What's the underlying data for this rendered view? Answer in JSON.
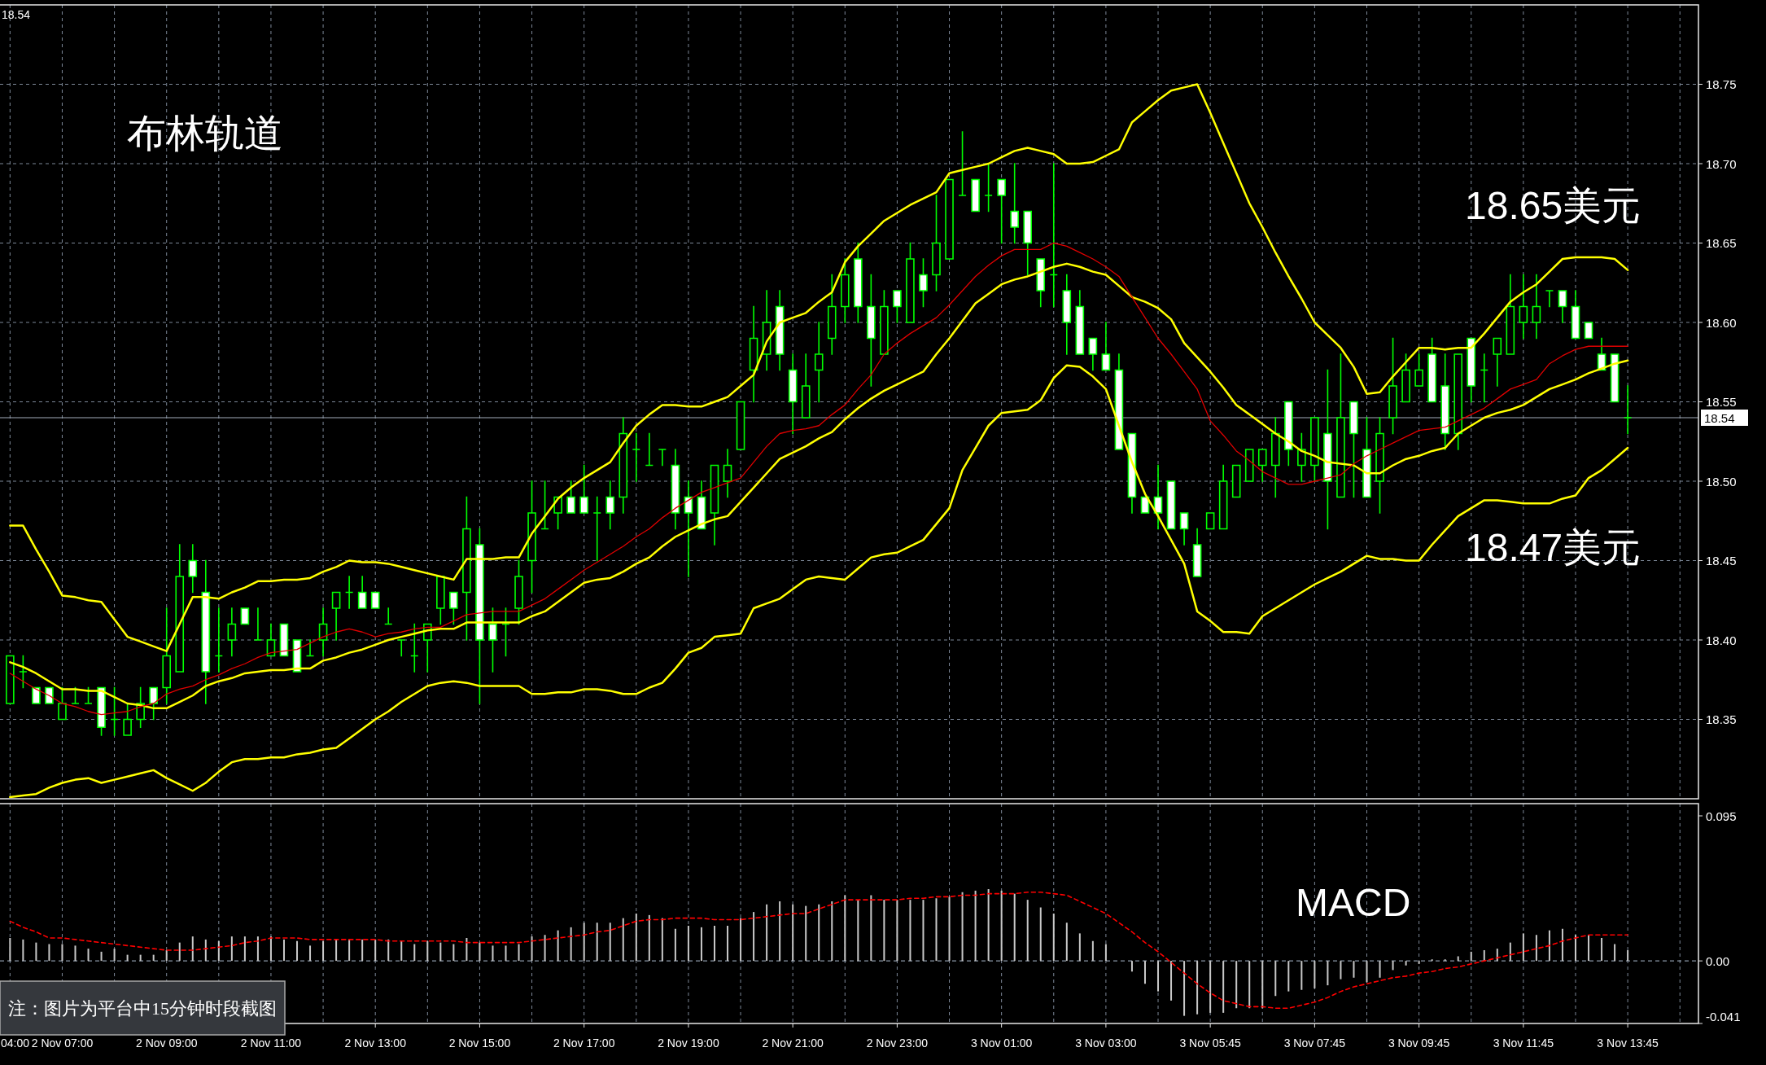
{
  "chart_data": [
    {
      "type": "candlestick",
      "color": "#00ff00",
      "categories": [
        null,
        null,
        null,
        null,
        null,
        null,
        null,
        null,
        null,
        null,
        null,
        null,
        null,
        null,
        null,
        null,
        null,
        null,
        null,
        null,
        null,
        null,
        null,
        null,
        null,
        null,
        null,
        null,
        null,
        null,
        null,
        null,
        null,
        null,
        null,
        null,
        null,
        null,
        null,
        null,
        null,
        null,
        null,
        null,
        null,
        null,
        null,
        null,
        null,
        null,
        null,
        null,
        null,
        null,
        null,
        null,
        null,
        null,
        null,
        null,
        null,
        null,
        null,
        null,
        null,
        null,
        null,
        null,
        null,
        null,
        null,
        null,
        null,
        null,
        null,
        null,
        null,
        null,
        null,
        null,
        null,
        null,
        null,
        null,
        null,
        null,
        null,
        null,
        null,
        null,
        null,
        null,
        null,
        null,
        null,
        null,
        null,
        null,
        null,
        null,
        null,
        null,
        null,
        null,
        null,
        null,
        null,
        null,
        null,
        null,
        null,
        null,
        null,
        null,
        null,
        null,
        null,
        null,
        null,
        null,
        null,
        null,
        null,
        null,
        null
      ],
      "ohlc": [
        [
          18.36,
          18.39,
          18.36,
          18.39
        ],
        [
          18.38,
          18.39,
          18.37,
          18.38
        ],
        [
          18.37,
          18.37,
          18.36,
          18.36
        ],
        [
          18.37,
          18.37,
          18.36,
          18.36
        ],
        [
          18.35,
          18.37,
          18.35,
          18.36
        ],
        [
          18.36,
          18.37,
          18.36,
          18.36
        ],
        [
          18.36,
          18.37,
          18.36,
          18.36
        ],
        [
          18.37,
          18.37,
          18.34,
          18.345
        ],
        [
          18.35,
          18.37,
          18.34,
          18.35
        ],
        [
          18.34,
          18.36,
          18.34,
          18.35
        ],
        [
          18.35,
          18.37,
          18.345,
          18.36
        ],
        [
          18.37,
          18.37,
          18.35,
          18.36
        ],
        [
          18.37,
          18.42,
          18.36,
          18.39
        ],
        [
          18.38,
          18.46,
          18.38,
          18.44
        ],
        [
          18.45,
          18.46,
          18.43,
          18.44
        ],
        [
          18.43,
          18.45,
          18.36,
          18.38
        ],
        [
          18.39,
          18.42,
          18.38,
          18.39
        ],
        [
          18.4,
          18.42,
          18.39,
          18.41
        ],
        [
          18.42,
          18.42,
          18.41,
          18.41
        ],
        [
          18.4,
          18.42,
          18.4,
          18.4
        ],
        [
          18.39,
          18.41,
          18.39,
          18.4
        ],
        [
          18.41,
          18.41,
          18.39,
          18.39
        ],
        [
          18.4,
          18.4,
          18.38,
          18.38
        ],
        [
          18.39,
          18.4,
          18.39,
          18.39
        ],
        [
          18.4,
          18.42,
          18.39,
          18.41
        ],
        [
          18.42,
          18.43,
          18.4,
          18.43
        ],
        [
          18.43,
          18.44,
          18.42,
          18.43
        ],
        [
          18.43,
          18.44,
          18.42,
          18.42
        ],
        [
          18.43,
          18.43,
          18.42,
          18.42
        ],
        [
          18.41,
          18.42,
          18.41,
          18.41
        ],
        [
          18.4,
          18.4,
          18.39,
          18.4
        ],
        [
          18.39,
          18.41,
          18.38,
          18.39
        ],
        [
          18.4,
          18.41,
          18.38,
          18.41
        ],
        [
          18.42,
          18.44,
          18.41,
          18.44
        ],
        [
          18.43,
          18.43,
          18.41,
          18.42
        ],
        [
          18.43,
          18.49,
          18.4,
          18.47
        ],
        [
          18.46,
          18.47,
          18.36,
          18.4
        ],
        [
          18.41,
          18.42,
          18.38,
          18.4
        ],
        [
          18.41,
          18.42,
          18.39,
          18.41
        ],
        [
          18.42,
          18.45,
          18.41,
          18.44
        ],
        [
          18.45,
          18.5,
          18.43,
          18.48
        ],
        [
          18.47,
          18.5,
          18.47,
          18.47
        ],
        [
          18.48,
          18.49,
          18.47,
          18.49
        ],
        [
          18.49,
          18.5,
          18.48,
          18.48
        ],
        [
          18.49,
          18.51,
          18.48,
          18.48
        ],
        [
          18.48,
          18.49,
          18.45,
          18.48
        ],
        [
          18.49,
          18.5,
          18.47,
          18.48
        ],
        [
          18.49,
          18.54,
          18.48,
          18.53
        ],
        [
          18.52,
          18.53,
          18.5,
          18.52
        ],
        [
          18.51,
          18.53,
          18.51,
          18.51
        ],
        [
          18.52,
          18.52,
          18.51,
          18.52
        ],
        [
          18.51,
          18.52,
          18.47,
          18.48
        ],
        [
          18.49,
          18.5,
          18.44,
          18.48
        ],
        [
          18.49,
          18.5,
          18.47,
          18.47
        ],
        [
          18.48,
          18.51,
          18.46,
          18.51
        ],
        [
          18.5,
          18.52,
          18.49,
          18.51
        ],
        [
          18.52,
          18.55,
          18.52,
          18.55
        ],
        [
          18.57,
          18.61,
          18.55,
          18.59
        ],
        [
          18.58,
          18.62,
          18.57,
          18.6
        ],
        [
          18.61,
          18.62,
          18.57,
          18.58
        ],
        [
          18.57,
          18.58,
          18.53,
          18.55
        ],
        [
          18.54,
          18.58,
          18.54,
          18.56
        ],
        [
          18.57,
          18.6,
          18.55,
          18.58
        ],
        [
          18.59,
          18.63,
          18.58,
          18.61
        ],
        [
          18.61,
          18.64,
          18.6,
          18.63
        ],
        [
          18.64,
          18.65,
          18.6,
          18.61
        ],
        [
          18.61,
          18.63,
          18.56,
          18.59
        ],
        [
          18.58,
          18.62,
          18.58,
          18.61
        ],
        [
          18.62,
          18.62,
          18.6,
          18.61
        ],
        [
          18.6,
          18.65,
          18.6,
          18.64
        ],
        [
          18.63,
          18.64,
          18.61,
          18.62
        ],
        [
          18.63,
          18.68,
          18.62,
          18.65
        ],
        [
          18.64,
          18.69,
          18.64,
          18.69
        ],
        [
          18.68,
          18.72,
          18.68,
          18.68
        ],
        [
          18.69,
          18.69,
          18.67,
          18.67
        ],
        [
          18.68,
          18.7,
          18.67,
          18.68
        ],
        [
          18.69,
          18.69,
          18.65,
          18.68
        ],
        [
          18.67,
          18.7,
          18.65,
          18.66
        ],
        [
          18.67,
          18.67,
          18.63,
          18.65
        ],
        [
          18.64,
          18.64,
          18.61,
          18.62
        ],
        [
          18.63,
          18.7,
          18.61,
          18.63
        ],
        [
          18.62,
          18.63,
          18.58,
          18.6
        ],
        [
          18.61,
          18.62,
          18.58,
          18.58
        ],
        [
          18.59,
          18.59,
          18.57,
          18.58
        ],
        [
          18.58,
          18.6,
          18.57,
          18.57
        ],
        [
          18.57,
          18.58,
          18.52,
          18.52
        ],
        [
          18.53,
          18.53,
          18.48,
          18.49
        ],
        [
          18.49,
          18.49,
          18.48,
          18.48
        ],
        [
          18.49,
          18.51,
          18.47,
          18.48
        ],
        [
          18.5,
          18.5,
          18.47,
          18.47
        ],
        [
          18.48,
          18.48,
          18.46,
          18.47
        ],
        [
          18.46,
          18.47,
          18.44,
          18.44
        ],
        [
          18.47,
          18.48,
          18.47,
          18.48
        ],
        [
          18.47,
          18.51,
          18.47,
          18.5
        ],
        [
          18.49,
          18.51,
          18.49,
          18.51
        ],
        [
          18.5,
          18.52,
          18.5,
          18.52
        ],
        [
          18.51,
          18.52,
          18.5,
          18.52
        ],
        [
          18.51,
          18.54,
          18.49,
          18.53
        ],
        [
          18.55,
          18.55,
          18.51,
          18.52
        ],
        [
          18.51,
          18.53,
          18.5,
          18.52
        ],
        [
          18.51,
          18.54,
          18.5,
          18.54
        ],
        [
          18.53,
          18.57,
          18.47,
          18.5
        ],
        [
          18.49,
          18.58,
          18.49,
          18.54
        ],
        [
          18.55,
          18.55,
          18.49,
          18.53
        ],
        [
          18.52,
          18.54,
          18.49,
          18.49
        ],
        [
          18.5,
          18.54,
          18.48,
          18.53
        ],
        [
          18.54,
          18.59,
          18.53,
          18.56
        ],
        [
          18.55,
          18.58,
          18.55,
          18.57
        ],
        [
          18.56,
          18.58,
          18.56,
          18.57
        ],
        [
          18.58,
          18.59,
          18.55,
          18.55
        ],
        [
          18.56,
          18.58,
          18.52,
          18.53
        ],
        [
          18.53,
          18.58,
          18.52,
          18.58
        ],
        [
          18.59,
          18.59,
          18.55,
          18.56
        ],
        [
          18.57,
          18.58,
          18.55,
          18.57
        ],
        [
          18.58,
          18.59,
          18.56,
          18.59
        ],
        [
          18.58,
          18.63,
          18.58,
          18.61
        ],
        [
          18.6,
          18.63,
          18.59,
          18.61
        ],
        [
          18.6,
          18.63,
          18.59,
          18.61
        ],
        [
          18.62,
          18.62,
          18.61,
          18.62
        ],
        [
          18.62,
          18.62,
          18.6,
          18.61
        ],
        [
          18.61,
          18.62,
          18.59,
          18.59
        ],
        [
          18.6,
          18.6,
          18.59,
          18.59
        ],
        [
          18.58,
          18.59,
          18.57,
          18.57
        ],
        [
          18.58,
          18.58,
          18.55,
          18.55
        ],
        [
          18.54,
          18.56,
          18.53,
          18.54
        ]
      ],
      "series": [
        {
          "type": "line",
          "color": "#ffff00",
          "values": [
            18.472,
            18.472,
            18.457,
            18.443,
            18.428,
            18.427,
            18.425,
            18.424,
            18.413,
            18.402,
            18.399,
            18.396,
            18.393,
            18.41,
            18.427,
            18.427,
            18.426,
            18.43,
            18.433,
            18.437,
            18.437,
            18.438,
            18.438,
            18.439,
            18.443,
            18.446,
            18.45,
            18.449,
            18.449,
            18.448,
            18.446,
            18.444,
            18.442,
            18.44,
            18.438,
            18.451,
            18.451,
            18.451,
            18.452,
            18.452,
            18.467,
            18.478,
            18.489,
            18.496,
            18.502,
            18.507,
            18.512,
            18.524,
            18.535,
            18.542,
            18.548,
            18.548,
            18.547,
            18.547,
            18.55,
            18.553,
            18.56,
            18.567,
            18.588,
            18.6,
            18.603,
            18.606,
            18.613,
            18.619,
            18.638,
            18.648,
            18.656,
            18.664,
            18.669,
            18.674,
            18.678,
            18.682,
            18.694,
            18.696,
            18.698,
            18.7,
            18.704,
            18.708,
            18.71,
            18.708,
            18.706,
            18.7,
            18.7,
            18.701,
            18.705,
            18.709,
            18.726,
            18.733,
            18.74,
            18.746,
            18.748,
            18.75,
            18.732,
            18.713,
            18.694,
            18.675,
            18.66,
            18.644,
            18.629,
            18.615,
            18.6,
            18.592,
            18.584,
            18.572,
            18.555,
            18.556,
            18.566,
            18.575,
            18.584,
            18.584,
            18.583,
            18.584,
            18.584,
            18.593,
            18.603,
            18.613,
            18.619,
            18.624,
            18.632,
            18.64,
            18.641,
            18.641,
            18.641,
            18.64,
            18.633
          ]
        },
        {
          "type": "line",
          "color": "#ffff00",
          "values": [
            18.386,
            18.383,
            18.379,
            18.374,
            18.369,
            18.369,
            18.368,
            18.368,
            18.364,
            18.36,
            18.359,
            18.357,
            18.357,
            18.361,
            18.365,
            18.371,
            18.374,
            18.376,
            18.379,
            18.38,
            18.381,
            18.381,
            18.382,
            18.382,
            18.387,
            18.389,
            18.392,
            18.394,
            18.397,
            18.4,
            18.402,
            18.404,
            18.406,
            18.407,
            18.407,
            18.411,
            18.411,
            18.411,
            18.411,
            18.411,
            18.415,
            18.418,
            18.424,
            18.43,
            18.436,
            18.438,
            18.439,
            18.443,
            18.448,
            18.452,
            18.459,
            18.465,
            18.469,
            18.473,
            18.476,
            18.478,
            18.487,
            18.496,
            18.505,
            18.514,
            18.518,
            18.522,
            18.527,
            18.531,
            18.539,
            18.546,
            18.552,
            18.557,
            18.561,
            18.565,
            18.569,
            18.58,
            18.59,
            18.601,
            18.612,
            18.618,
            18.624,
            18.627,
            18.629,
            18.632,
            18.635,
            18.637,
            18.635,
            18.632,
            18.63,
            18.623,
            18.616,
            18.613,
            18.609,
            18.602,
            18.587,
            18.578,
            18.569,
            18.559,
            18.548,
            18.542,
            18.536,
            18.53,
            18.525,
            18.519,
            18.516,
            18.512,
            18.511,
            18.51,
            18.505,
            18.505,
            18.51,
            18.514,
            18.516,
            18.519,
            18.521,
            18.53,
            18.535,
            18.54,
            18.543,
            18.545,
            18.548,
            18.553,
            18.558,
            18.561,
            18.564,
            18.568,
            18.571,
            18.574,
            18.576
          ]
        },
        {
          "type": "line",
          "color": "#ffff00",
          "values": [
            18.301,
            18.302,
            18.303,
            18.307,
            18.31,
            18.312,
            18.313,
            18.31,
            18.312,
            18.314,
            18.316,
            18.318,
            18.313,
            18.309,
            18.305,
            18.31,
            18.317,
            18.323,
            18.325,
            18.325,
            18.326,
            18.326,
            18.328,
            18.329,
            18.331,
            18.332,
            18.338,
            18.344,
            18.35,
            18.355,
            18.361,
            18.366,
            18.371,
            18.373,
            18.374,
            18.373,
            18.371,
            18.371,
            18.371,
            18.371,
            18.366,
            18.366,
            18.367,
            18.367,
            18.369,
            18.369,
            18.368,
            18.366,
            18.366,
            18.37,
            18.373,
            18.382,
            18.392,
            18.395,
            18.402,
            18.403,
            18.404,
            18.42,
            18.423,
            18.426,
            18.432,
            18.438,
            18.44,
            18.439,
            18.438,
            18.445,
            18.452,
            18.454,
            18.455,
            18.459,
            18.463,
            18.473,
            18.483,
            18.507,
            18.521,
            18.535,
            18.543,
            18.544,
            18.545,
            18.551,
            18.565,
            18.573,
            18.572,
            18.566,
            18.558,
            18.535,
            18.512,
            18.492,
            18.478,
            18.463,
            18.448,
            18.418,
            18.412,
            18.405,
            18.405,
            18.404,
            18.415,
            18.42,
            18.425,
            18.43,
            18.435,
            18.439,
            18.443,
            18.448,
            18.453,
            18.451,
            18.451,
            18.45,
            18.45,
            18.46,
            18.469,
            18.478,
            18.483,
            18.488,
            18.488,
            18.487,
            18.486,
            18.486,
            18.486,
            18.489,
            18.491,
            18.502,
            18.507,
            18.514,
            18.521
          ]
        },
        {
          "type": "line",
          "color": "#e00000",
          "values": [
            18.379,
            18.374,
            18.369,
            18.365,
            18.36,
            18.358,
            18.355,
            18.353,
            18.354,
            18.355,
            18.358,
            18.36,
            18.366,
            18.369,
            18.371,
            18.375,
            18.378,
            18.382,
            18.385,
            18.389,
            18.392,
            18.393,
            18.394,
            18.398,
            18.402,
            18.405,
            18.407,
            18.405,
            18.402,
            18.404,
            18.405,
            18.407,
            18.408,
            18.408,
            18.412,
            18.416,
            18.417,
            18.418,
            18.418,
            18.418,
            18.422,
            18.426,
            18.432,
            18.438,
            18.444,
            18.449,
            18.454,
            18.459,
            18.465,
            18.47,
            18.477,
            18.483,
            18.488,
            18.493,
            18.496,
            18.499,
            18.502,
            18.512,
            18.522,
            18.53,
            18.532,
            18.533,
            18.535,
            18.542,
            18.548,
            18.558,
            18.567,
            18.58,
            18.587,
            18.593,
            18.598,
            18.603,
            18.611,
            18.62,
            18.629,
            18.636,
            18.642,
            18.646,
            18.646,
            18.646,
            18.65,
            18.648,
            18.644,
            18.64,
            18.635,
            18.629,
            18.616,
            18.603,
            18.59,
            18.58,
            18.569,
            18.558,
            18.538,
            18.529,
            18.519,
            18.513,
            18.506,
            18.502,
            18.498,
            18.498,
            18.5,
            18.502,
            18.504,
            18.511,
            18.516,
            18.52,
            18.524,
            18.528,
            18.532,
            18.533,
            18.534,
            18.538,
            18.542,
            18.546,
            18.552,
            18.558,
            18.561,
            18.564,
            18.574,
            18.579,
            18.583,
            18.585,
            18.585,
            18.585,
            18.585
          ]
        }
      ],
      "ylim": [
        18.3,
        18.8
      ],
      "yticks": [
        18.35,
        {
          "value": 18.4,
          "label": "18.40"
        },
        18.45,
        {
          "value": 18.5,
          "label": "18.50"
        },
        18.55,
        {
          "value": 18.6,
          "label": "18.60"
        },
        18.65,
        {
          "value": 18.7,
          "label": "18.70"
        },
        18.75
      ],
      "grid": true,
      "ref_lines": [
        {
          "axis": "y",
          "value": 18.54,
          "label": "18.54",
          "color": "#a4aebb"
        }
      ],
      "annotations": [
        "18.54",
        "布林轨道",
        "18.65美元",
        "18.47美元"
      ]
    },
    {
      "type": "bar",
      "color": "#c8c8c8",
      "categories": [
        "04:00",
        null,
        null,
        null,
        "2 Nov 07:00",
        null,
        null,
        null,
        null,
        null,
        null,
        null,
        "2 Nov 09:00",
        null,
        null,
        null,
        null,
        null,
        null,
        null,
        "2 Nov 11:00",
        null,
        null,
        null,
        null,
        null,
        null,
        null,
        "2 Nov 13:00",
        null,
        null,
        null,
        null,
        null,
        null,
        null,
        "2 Nov 15:00",
        null,
        null,
        null,
        null,
        null,
        null,
        null,
        "2 Nov 17:00",
        null,
        null,
        null,
        null,
        null,
        null,
        null,
        "2 Nov 19:00",
        null,
        null,
        null,
        null,
        null,
        null,
        null,
        "2 Nov 21:00",
        null,
        null,
        null,
        null,
        null,
        null,
        null,
        "2 Nov 23:00",
        null,
        null,
        null,
        null,
        null,
        null,
        null,
        "3 Nov 01:00",
        null,
        null,
        null,
        null,
        null,
        null,
        null,
        "3 Nov 03:00",
        null,
        null,
        null,
        null,
        null,
        null,
        null,
        "3 Nov 05:45",
        null,
        null,
        null,
        null,
        null,
        null,
        null,
        "3 Nov 07:45",
        null,
        null,
        null,
        null,
        null,
        null,
        null,
        "3 Nov 09:45",
        null,
        null,
        null,
        null,
        null,
        null,
        null,
        "3 Nov 11:45",
        null,
        null,
        null,
        null,
        null,
        null,
        null,
        "3 Nov 13:45"
      ],
      "values": [
        0.015,
        0.014,
        0.012,
        0.011,
        0.011,
        0.01,
        0.008,
        0.006,
        0.008,
        0.004,
        0.004,
        0.004,
        0.007,
        0.012,
        0.016,
        0.014,
        0.013,
        0.016,
        0.016,
        0.016,
        0.016,
        0.014,
        0.013,
        0.01,
        0.013,
        0.014,
        0.014,
        0.014,
        0.014,
        0.014,
        0.013,
        0.011,
        0.013,
        0.012,
        0.011,
        0.015,
        0.012,
        0.01,
        0.01,
        0.011,
        0.016,
        0.017,
        0.02,
        0.022,
        0.025,
        0.025,
        0.025,
        0.028,
        0.031,
        0.03,
        0.028,
        0.021,
        0.023,
        0.022,
        0.023,
        0.023,
        0.028,
        0.032,
        0.037,
        0.039,
        0.037,
        0.036,
        0.037,
        0.039,
        0.043,
        0.04,
        0.043,
        0.04,
        0.04,
        0.04,
        0.04,
        0.041,
        0.042,
        0.045,
        0.046,
        0.047,
        0.046,
        0.044,
        0.04,
        0.035,
        0.031,
        0.025,
        0.018,
        0.013,
        0.011,
        null,
        -0.007,
        -0.015,
        -0.02,
        -0.026,
        -0.036,
        -0.035,
        -0.034,
        -0.034,
        -0.031,
        -0.031,
        -0.031,
        -0.023,
        -0.02,
        -0.019,
        -0.018,
        -0.016,
        -0.012,
        -0.011,
        -0.014,
        -0.011,
        -0.006,
        -0.003,
        -0.002,
        0.001,
        0.001,
        0.003,
        0.006,
        0.007,
        0.008,
        0.012,
        0.018,
        0.017,
        0.02,
        0.021,
        0.017,
        0.017,
        0.015,
        0.011,
        0.007
      ],
      "series": [
        {
          "type": "line",
          "color": "#ff0000",
          "line_style": "dashed",
          "values": [
            0.026,
            0.022,
            0.019,
            0.015,
            0.015,
            0.014,
            0.013,
            0.012,
            0.011,
            0.01,
            0.009,
            0.008,
            0.007,
            0.007,
            0.007,
            0.008,
            0.009,
            0.01,
            0.012,
            0.013,
            0.015,
            0.015,
            0.015,
            0.014,
            0.014,
            0.014,
            0.014,
            0.014,
            0.014,
            0.013,
            0.013,
            0.013,
            0.013,
            0.013,
            0.013,
            0.012,
            0.012,
            0.012,
            0.012,
            0.012,
            0.013,
            0.014,
            0.015,
            0.016,
            0.017,
            0.019,
            0.02,
            0.023,
            0.026,
            0.027,
            0.027,
            0.028,
            0.028,
            0.028,
            0.027,
            0.027,
            0.027,
            0.028,
            0.029,
            0.03,
            0.031,
            0.031,
            0.034,
            0.037,
            0.04,
            0.04,
            0.04,
            0.04,
            0.04,
            0.041,
            0.041,
            0.042,
            0.042,
            0.043,
            0.043,
            0.044,
            0.044,
            0.044,
            0.045,
            0.045,
            0.044,
            0.043,
            0.039,
            0.035,
            0.031,
            0.025,
            0.019,
            0.012,
            0.006,
            -0.001,
            -0.008,
            -0.015,
            -0.021,
            -0.026,
            -0.028,
            -0.03,
            -0.03,
            -0.031,
            -0.031,
            -0.029,
            -0.027,
            -0.024,
            -0.02,
            -0.017,
            -0.015,
            -0.013,
            -0.011,
            -0.01,
            -0.008,
            -0.007,
            -0.005,
            -0.004,
            -0.002,
            0.0,
            0.002,
            0.004,
            0.006,
            0.008,
            0.01,
            0.013,
            0.015,
            0.017,
            0.017,
            0.017,
            0.017
          ]
        }
      ],
      "ylim": [
        -0.041,
        0.103
      ],
      "yticks": [
        0.095,
        {
          "value": 0,
          "label": "0.00"
        },
        -0.041
      ],
      "grid": "x",
      "ref_lines": [
        {
          "axis": "y",
          "value": 0,
          "color": "#8a96a6",
          "line_style": "dashed"
        }
      ],
      "annotations": [
        "MACD",
        "注：图片为平台中15分钟时段截图"
      ]
    }
  ]
}
